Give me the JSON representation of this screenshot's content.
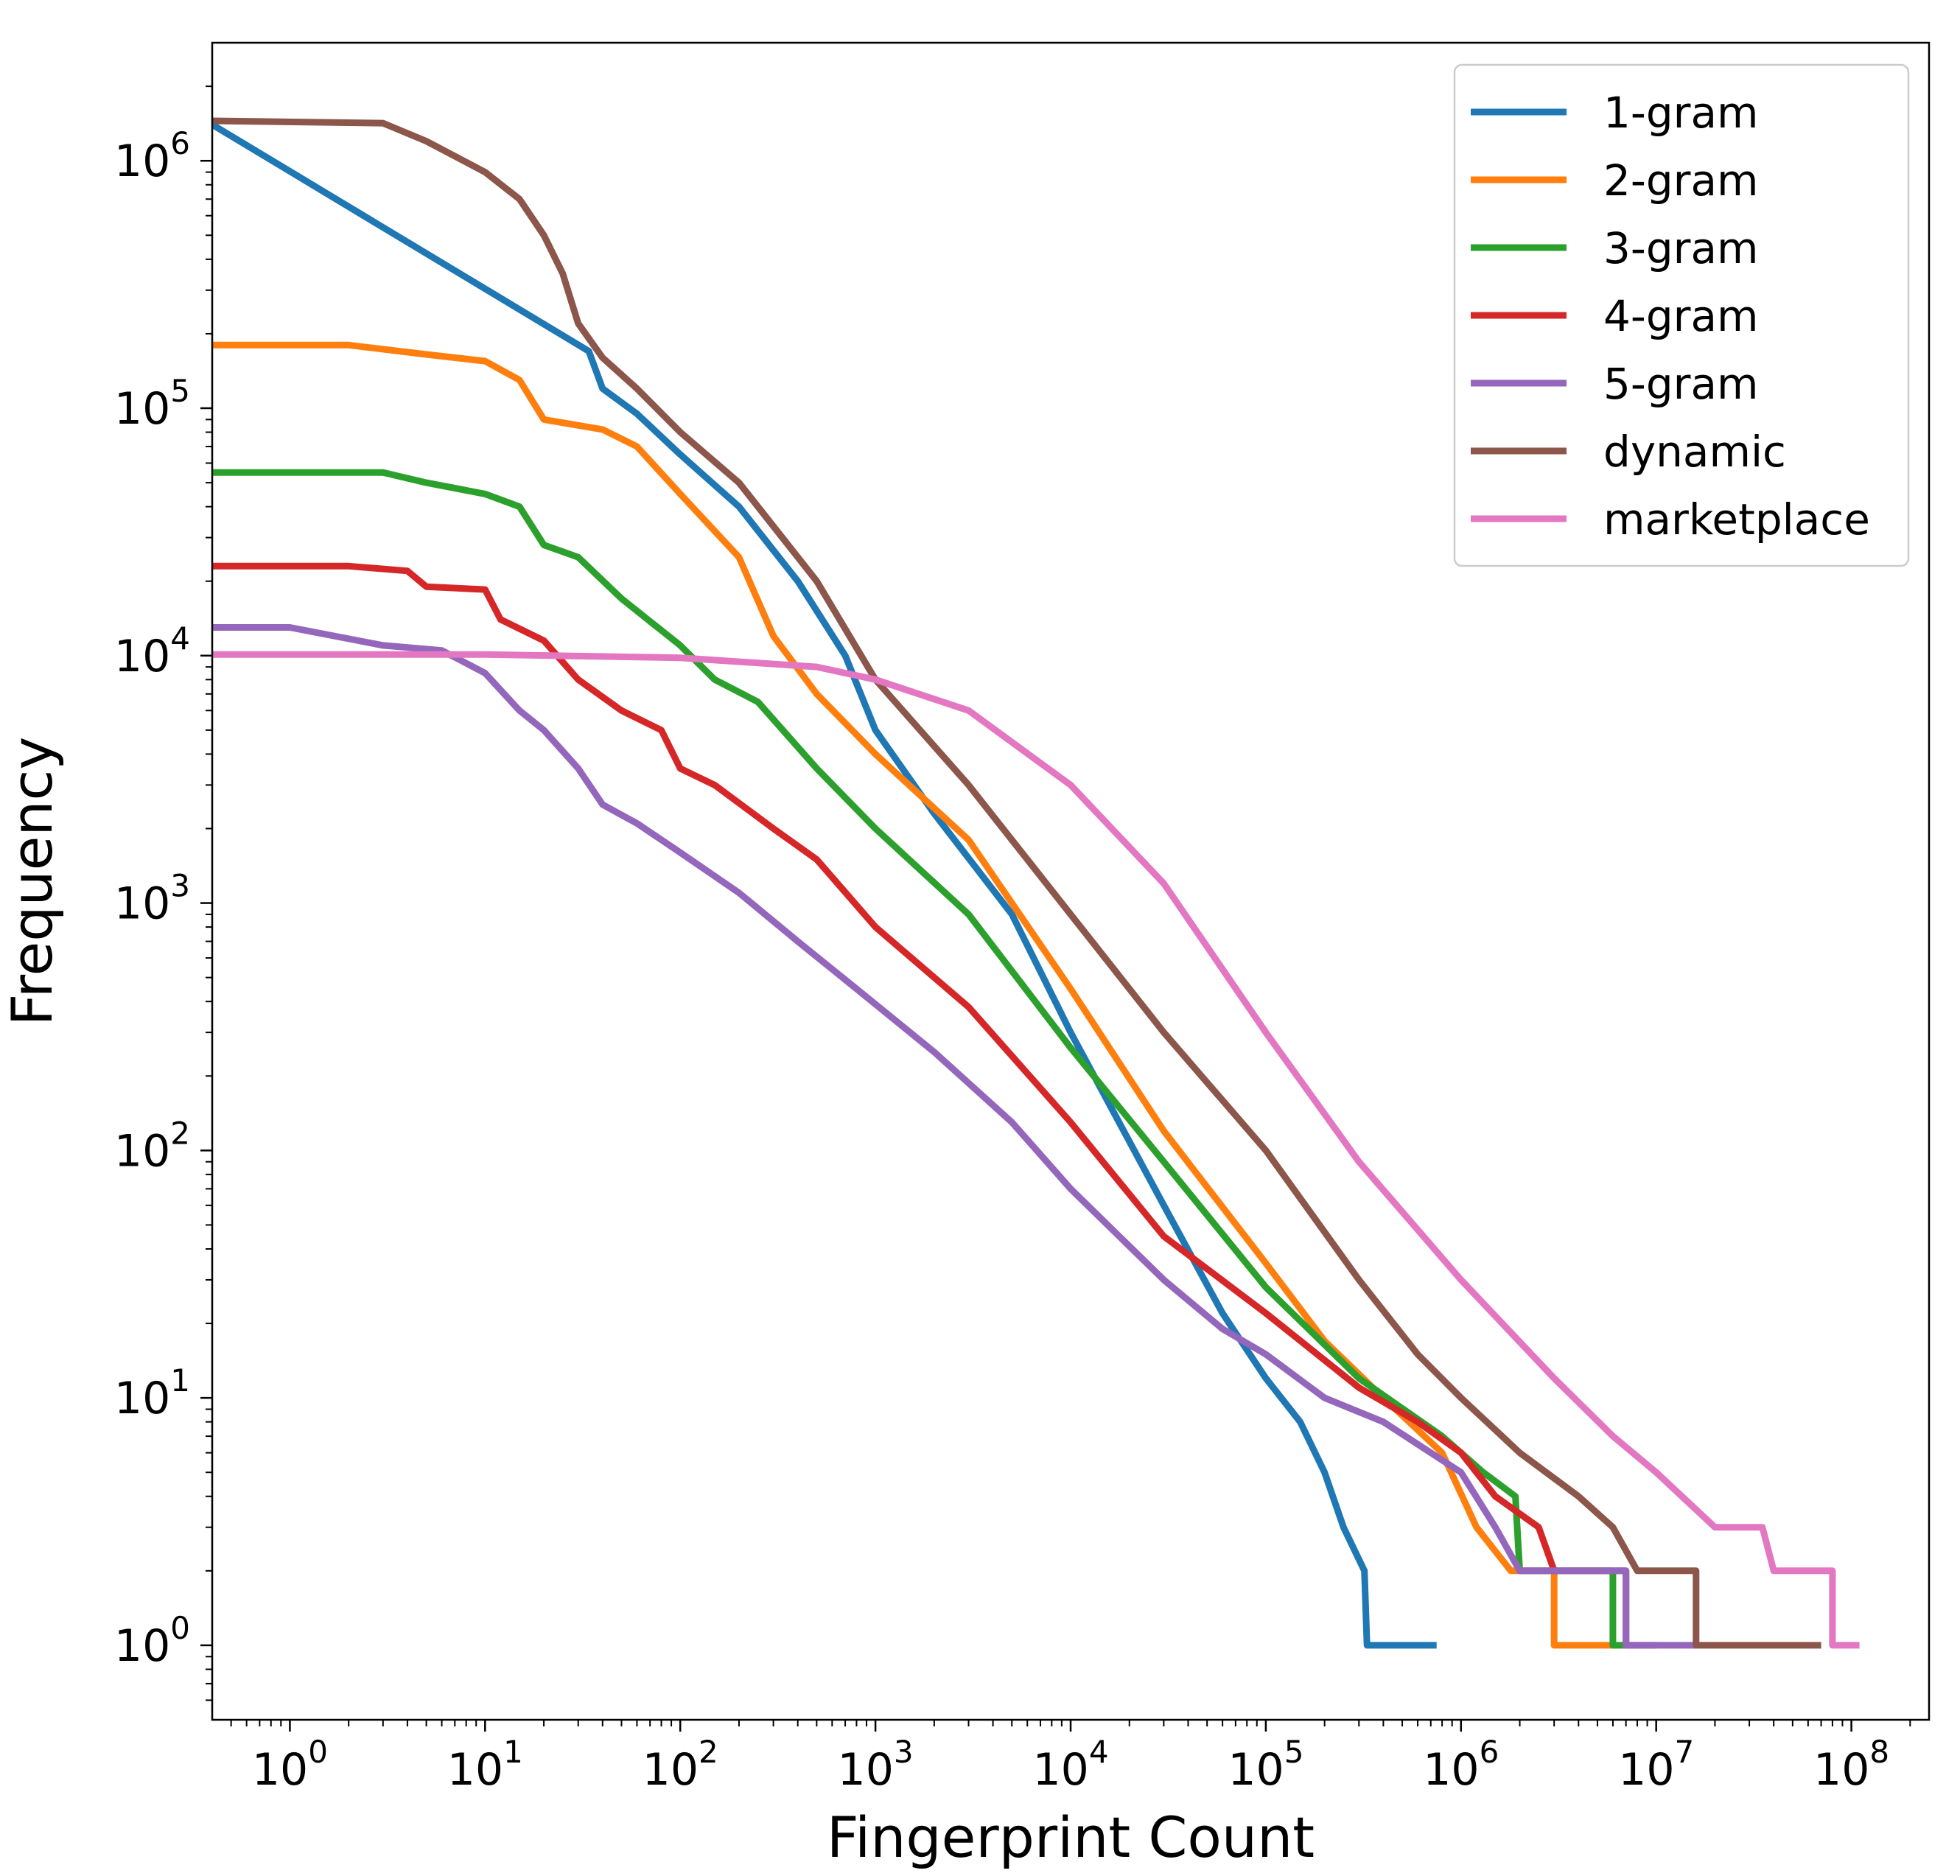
{
  "chart_data": {
    "type": "line",
    "title": "",
    "xlabel": "Fingerprint Count",
    "ylabel": "Frequency",
    "xscale": "log",
    "yscale": "log",
    "xlim": [
      0.4,
      250000000
    ],
    "ylim": [
      0.5,
      3000000
    ],
    "x_ticks": [
      {
        "base": "10",
        "exp": "0",
        "value": 1
      },
      {
        "base": "10",
        "exp": "1",
        "value": 10
      },
      {
        "base": "10",
        "exp": "2",
        "value": 100
      },
      {
        "base": "10",
        "exp": "3",
        "value": 1000
      },
      {
        "base": "10",
        "exp": "4",
        "value": 10000
      },
      {
        "base": "10",
        "exp": "5",
        "value": 100000
      },
      {
        "base": "10",
        "exp": "6",
        "value": 1000000
      },
      {
        "base": "10",
        "exp": "7",
        "value": 10000000
      },
      {
        "base": "10",
        "exp": "8",
        "value": 100000000
      }
    ],
    "y_ticks": [
      {
        "base": "10",
        "exp": "0",
        "value": 1
      },
      {
        "base": "10",
        "exp": "1",
        "value": 10
      },
      {
        "base": "10",
        "exp": "2",
        "value": 100
      },
      {
        "base": "10",
        "exp": "3",
        "value": 1000
      },
      {
        "base": "10",
        "exp": "4",
        "value": 10000
      },
      {
        "base": "10",
        "exp": "5",
        "value": 100000
      },
      {
        "base": "10",
        "exp": "6",
        "value": 1000000
      }
    ],
    "legend_position": "top-right",
    "grid": false,
    "series": [
      {
        "name": "1-gram",
        "color": "#1f77b4",
        "points": [
          [
            0.4,
            1400000
          ],
          [
            34,
            170000
          ],
          [
            40,
            120000
          ],
          [
            60,
            95000
          ],
          [
            100,
            65000
          ],
          [
            200,
            40000
          ],
          [
            400,
            20000
          ],
          [
            700,
            10000
          ],
          [
            1000,
            5000
          ],
          [
            2000,
            2300
          ],
          [
            5000,
            900
          ],
          [
            10000,
            300
          ],
          [
            30000,
            60
          ],
          [
            60000,
            22
          ],
          [
            100000,
            12
          ],
          [
            150000,
            8
          ],
          [
            200000,
            5
          ],
          [
            250000,
            3
          ],
          [
            320000,
            2
          ],
          [
            330000,
            1
          ],
          [
            750000,
            1
          ]
        ]
      },
      {
        "name": "2-gram",
        "color": "#ff7f0e",
        "points": [
          [
            0.4,
            180000
          ],
          [
            2,
            180000
          ],
          [
            5,
            165000
          ],
          [
            10,
            155000
          ],
          [
            15,
            130000
          ],
          [
            20,
            90000
          ],
          [
            40,
            82000
          ],
          [
            60,
            70000
          ],
          [
            100,
            45000
          ],
          [
            200,
            25000
          ],
          [
            300,
            12000
          ],
          [
            500,
            7000
          ],
          [
            1000,
            4000
          ],
          [
            3000,
            1800
          ],
          [
            10000,
            450
          ],
          [
            30000,
            120
          ],
          [
            100000,
            35
          ],
          [
            200000,
            17
          ],
          [
            400000,
            10
          ],
          [
            800000,
            6
          ],
          [
            1200000,
            3
          ],
          [
            1800000,
            2
          ],
          [
            3000000,
            2
          ],
          [
            3000001,
            1
          ],
          [
            6000000,
            1
          ]
        ]
      },
      {
        "name": "3-gram",
        "color": "#2ca02c",
        "points": [
          [
            0.4,
            55000
          ],
          [
            3,
            55000
          ],
          [
            5,
            50000
          ],
          [
            10,
            45000
          ],
          [
            15,
            40000
          ],
          [
            20,
            28000
          ],
          [
            30,
            25000
          ],
          [
            50,
            17000
          ],
          [
            100,
            11000
          ],
          [
            150,
            8000
          ],
          [
            250,
            6500
          ],
          [
            500,
            3500
          ],
          [
            1000,
            2000
          ],
          [
            3000,
            900
          ],
          [
            10000,
            260
          ],
          [
            30000,
            90
          ],
          [
            100000,
            28
          ],
          [
            300000,
            12
          ],
          [
            800000,
            7
          ],
          [
            1300000,
            5
          ],
          [
            1900000,
            4
          ],
          [
            2000000,
            2
          ],
          [
            6000000,
            2
          ],
          [
            6000001,
            1
          ],
          [
            7000000,
            1
          ]
        ]
      },
      {
        "name": "4-gram",
        "color": "#d62728",
        "points": [
          [
            0.4,
            23000
          ],
          [
            2,
            23000
          ],
          [
            4,
            22000
          ],
          [
            5,
            19000
          ],
          [
            10,
            18500
          ],
          [
            12,
            14000
          ],
          [
            20,
            11500
          ],
          [
            30,
            8000
          ],
          [
            50,
            6000
          ],
          [
            80,
            5000
          ],
          [
            100,
            3500
          ],
          [
            150,
            3000
          ],
          [
            300,
            2000
          ],
          [
            500,
            1500
          ],
          [
            1000,
            800
          ],
          [
            3000,
            380
          ],
          [
            10000,
            130
          ],
          [
            30000,
            45
          ],
          [
            100000,
            22
          ],
          [
            300000,
            11
          ],
          [
            600000,
            8
          ],
          [
            1000000,
            6
          ],
          [
            1500000,
            4
          ],
          [
            2500000,
            3
          ],
          [
            3000000,
            2
          ],
          [
            7000000,
            2
          ],
          [
            7000001,
            1
          ],
          [
            10000000,
            1
          ]
        ]
      },
      {
        "name": "5-gram",
        "color": "#9467bd",
        "points": [
          [
            0.4,
            13000
          ],
          [
            1,
            13000
          ],
          [
            3,
            11000
          ],
          [
            6,
            10500
          ],
          [
            10,
            8500
          ],
          [
            15,
            6000
          ],
          [
            20,
            5000
          ],
          [
            30,
            3500
          ],
          [
            40,
            2500
          ],
          [
            60,
            2100
          ],
          [
            100,
            1600
          ],
          [
            200,
            1100
          ],
          [
            400,
            700
          ],
          [
            800,
            450
          ],
          [
            2000,
            250
          ],
          [
            5000,
            130
          ],
          [
            10000,
            70
          ],
          [
            30000,
            30
          ],
          [
            60000,
            19
          ],
          [
            100000,
            15
          ],
          [
            200000,
            10
          ],
          [
            400000,
            8
          ],
          [
            700000,
            6
          ],
          [
            1000000,
            5
          ],
          [
            1500000,
            3
          ],
          [
            2000000,
            2
          ],
          [
            7000000,
            2
          ],
          [
            7000001,
            1
          ],
          [
            16000000,
            1
          ]
        ]
      },
      {
        "name": "dynamic",
        "color": "#8c564b",
        "points": [
          [
            0.4,
            1450000
          ],
          [
            3,
            1420000
          ],
          [
            5,
            1200000
          ],
          [
            10,
            900000
          ],
          [
            15,
            700000
          ],
          [
            20,
            500000
          ],
          [
            25,
            350000
          ],
          [
            30,
            220000
          ],
          [
            40,
            160000
          ],
          [
            60,
            120000
          ],
          [
            100,
            80000
          ],
          [
            200,
            50000
          ],
          [
            500,
            20000
          ],
          [
            1000,
            8000
          ],
          [
            3000,
            3000
          ],
          [
            10000,
            900
          ],
          [
            30000,
            300
          ],
          [
            100000,
            100
          ],
          [
            300000,
            30
          ],
          [
            600000,
            15
          ],
          [
            1000000,
            10
          ],
          [
            2000000,
            6
          ],
          [
            4000000,
            4
          ],
          [
            6000000,
            3
          ],
          [
            8000000,
            2
          ],
          [
            16000000,
            2
          ],
          [
            16000001,
            1
          ],
          [
            70000000,
            1
          ]
        ]
      },
      {
        "name": "marketplace",
        "color": "#e377c2",
        "points": [
          [
            0.4,
            10100
          ],
          [
            1,
            10100
          ],
          [
            10,
            10100
          ],
          [
            100,
            9800
          ],
          [
            500,
            9000
          ],
          [
            1000,
            8000
          ],
          [
            3000,
            6000
          ],
          [
            10000,
            3000
          ],
          [
            30000,
            1200
          ],
          [
            100000,
            300
          ],
          [
            300000,
            90
          ],
          [
            1000000,
            30
          ],
          [
            3000000,
            12
          ],
          [
            6000000,
            7
          ],
          [
            10000000,
            5
          ],
          [
            20000000,
            3
          ],
          [
            35000000,
            3
          ],
          [
            40000000,
            2
          ],
          [
            80000000,
            2
          ],
          [
            80000001,
            1
          ],
          [
            110000000,
            1
          ]
        ]
      }
    ]
  }
}
